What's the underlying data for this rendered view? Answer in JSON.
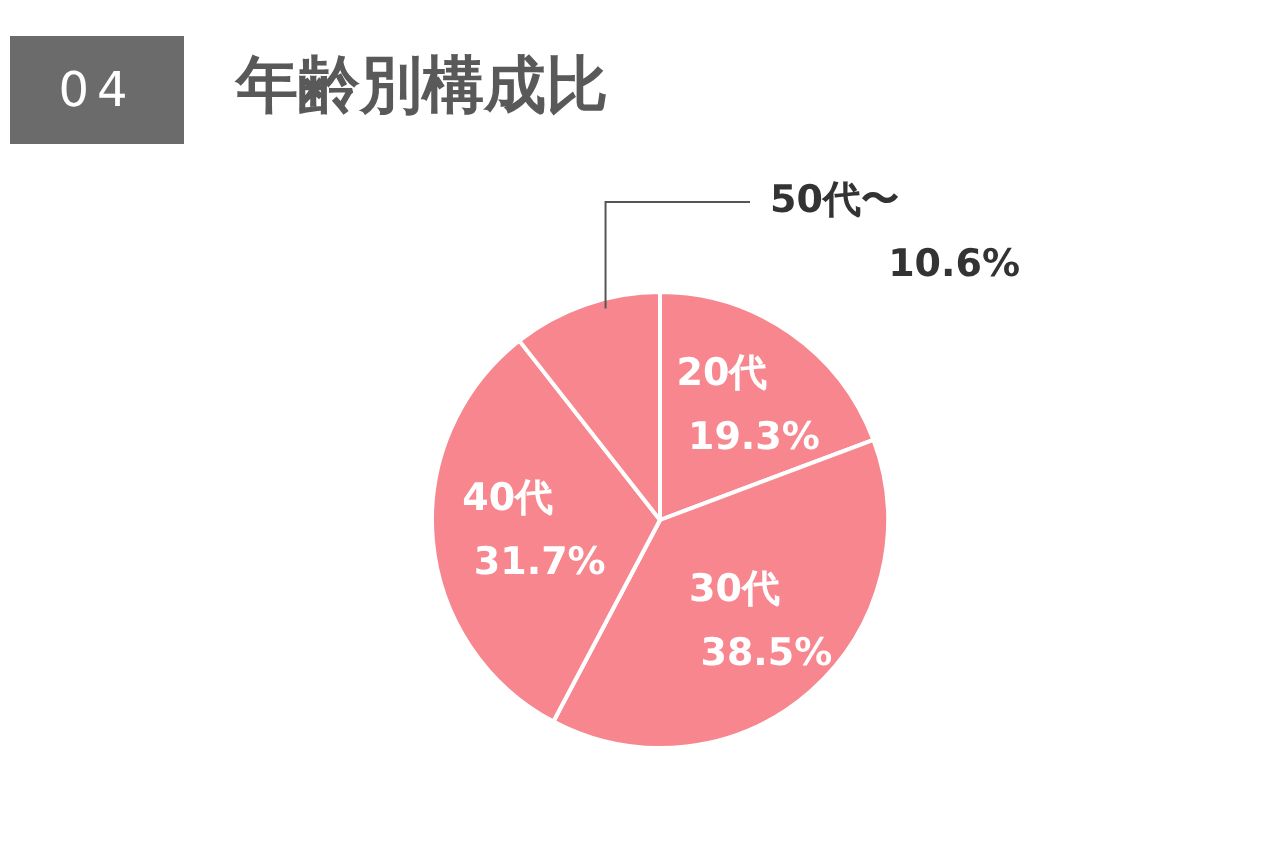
{
  "chart_data": {
    "type": "pie",
    "title": "年齢別構成比",
    "annotations": [
      "04"
    ],
    "categories": [
      "20代",
      "30代",
      "40代",
      "50代〜"
    ],
    "values": [
      19.3,
      38.5,
      31.7,
      10.6
    ],
    "value_labels": [
      "19.3%",
      "38.5%",
      "31.7%",
      "10.6%"
    ],
    "colors": [
      "#f7868e",
      "#f7868e",
      "#f7868e",
      "#f7868e"
    ],
    "legend": false
  }
}
